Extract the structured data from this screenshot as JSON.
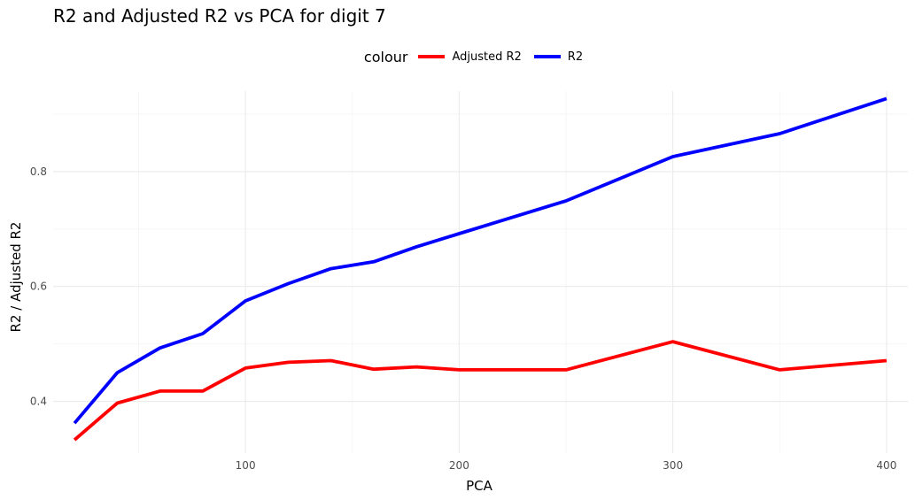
{
  "chart_data": {
    "type": "line",
    "title": "R2 and Adjusted R2 vs PCA for digit 7",
    "xlabel": "PCA",
    "ylabel": "R2 / Adjusted R2",
    "xlim": [
      10,
      410
    ],
    "ylim": [
      0.31,
      0.94
    ],
    "xticks": [
      100,
      200,
      300,
      400
    ],
    "yticks": [
      0.4,
      0.6,
      0.8
    ],
    "grid": true,
    "legend_placement": "top",
    "legend_title": "colour",
    "x": [
      20,
      40,
      60,
      80,
      100,
      120,
      140,
      160,
      180,
      200,
      250,
      300,
      350,
      400
    ],
    "series": [
      {
        "name": "Adjusted R2",
        "color": "#ff0000",
        "values": [
          0.333,
          0.397,
          0.418,
          0.418,
          0.458,
          0.468,
          0.471,
          0.456,
          0.46,
          0.455,
          0.455,
          0.504,
          0.455,
          0.471
        ]
      },
      {
        "name": "R2",
        "color": "#0000ff",
        "values": [
          0.362,
          0.45,
          0.493,
          0.518,
          0.575,
          0.605,
          0.631,
          0.643,
          0.669,
          0.692,
          0.749,
          0.826,
          0.866,
          0.927
        ]
      }
    ]
  }
}
